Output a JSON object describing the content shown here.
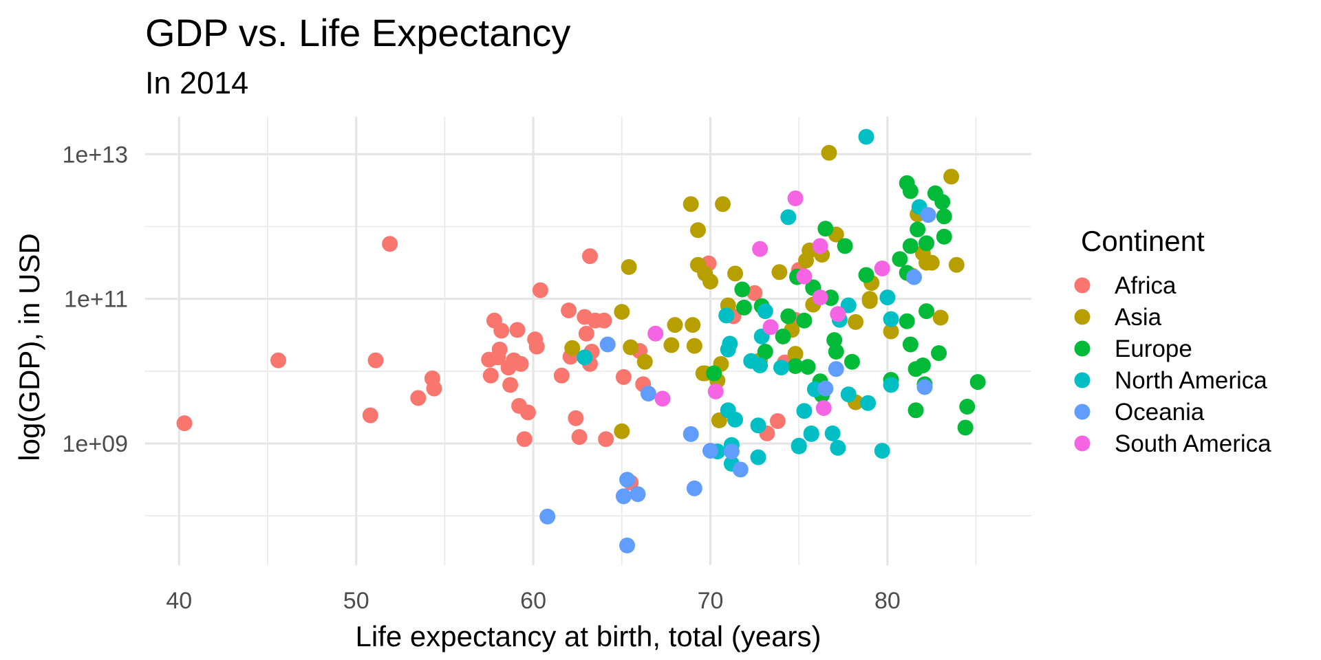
{
  "chart_data": {
    "type": "scatter",
    "title": "GDP vs. Life Expectancy",
    "subtitle": "In 2014",
    "xlabel": "Life expectancy at birth, total (years)",
    "ylabel": "log(GDP), in USD",
    "x_scale": "linear",
    "y_scale": "log10",
    "xlim": [
      38.5,
      86.5
    ],
    "ylim_log10": [
      7.3,
      13.45
    ],
    "x_ticks": [
      40,
      50,
      60,
      70,
      80
    ],
    "x_tick_labels": [
      "40",
      "50",
      "60",
      "70",
      "80"
    ],
    "x_minor_ticks": [
      45,
      55,
      65,
      75,
      85
    ],
    "y_ticks_log10": [
      9,
      11,
      13
    ],
    "y_tick_labels": [
      "1e+09",
      "1e+11",
      "1e+13"
    ],
    "y_minor_ticks_log10": [
      8,
      10,
      12
    ],
    "grid": true,
    "legend": {
      "title": "Continent",
      "position": "right",
      "entries": [
        "Africa",
        "Asia",
        "Europe",
        "North America",
        "Oceania",
        "South America"
      ]
    },
    "colors": {
      "Africa": "#F8766D",
      "Asia": "#B79F00",
      "Europe": "#00BA38",
      "North America": "#00BFC4",
      "Oceania": "#619CFF",
      "South America": "#F564E3"
    },
    "series": [
      {
        "name": "Africa",
        "points": [
          [
            40.3,
            9.28
          ],
          [
            45.6,
            10.15
          ],
          [
            51.9,
            11.76
          ],
          [
            51.1,
            10.15
          ],
          [
            50.8,
            9.39
          ],
          [
            53.5,
            9.63
          ],
          [
            54.3,
            9.9
          ],
          [
            54.4,
            9.76
          ],
          [
            60.4,
            11.12
          ],
          [
            57.8,
            10.7
          ],
          [
            58.2,
            10.56
          ],
          [
            59.1,
            10.57
          ],
          [
            60.1,
            10.44
          ],
          [
            60.2,
            10.34
          ],
          [
            58.1,
            10.3
          ],
          [
            57.5,
            10.16
          ],
          [
            58.0,
            10.19
          ],
          [
            58.9,
            10.15
          ],
          [
            59.3,
            10.1
          ],
          [
            58.6,
            10.05
          ],
          [
            57.6,
            9.94
          ],
          [
            58.7,
            9.81
          ],
          [
            59.2,
            9.52
          ],
          [
            59.7,
            9.43
          ],
          [
            59.5,
            9.06
          ],
          [
            62.0,
            10.84
          ],
          [
            62.9,
            10.75
          ],
          [
            63.5,
            10.7
          ],
          [
            64.0,
            10.7
          ],
          [
            63.0,
            10.52
          ],
          [
            63.3,
            10.27
          ],
          [
            62.1,
            10.2
          ],
          [
            63.2,
            10.1
          ],
          [
            61.6,
            9.94
          ],
          [
            62.4,
            9.35
          ],
          [
            62.6,
            9.09
          ],
          [
            64.1,
            9.06
          ],
          [
            65.1,
            9.92
          ],
          [
            66.0,
            10.28
          ],
          [
            66.2,
            9.82
          ],
          [
            63.2,
            11.59
          ],
          [
            65.5,
            8.46
          ],
          [
            69.9,
            11.49
          ],
          [
            72.5,
            11.08
          ],
          [
            71.3,
            10.76
          ],
          [
            74.8,
            10.71
          ],
          [
            74.2,
            10.12
          ],
          [
            73.8,
            9.31
          ],
          [
            73.2,
            9.14
          ],
          [
            75.0,
            11.4
          ]
        ]
      },
      {
        "name": "Asia",
        "points": [
          [
            62.2,
            10.32
          ],
          [
            65.0,
            10.82
          ],
          [
            65.5,
            10.33
          ],
          [
            66.3,
            10.13
          ],
          [
            68.0,
            10.64
          ],
          [
            69.0,
            10.64
          ],
          [
            67.8,
            10.36
          ],
          [
            69.1,
            10.35
          ],
          [
            69.6,
            9.97
          ],
          [
            65.0,
            9.17
          ],
          [
            65.4,
            11.44
          ],
          [
            68.9,
            12.31
          ],
          [
            70.7,
            12.31
          ],
          [
            69.3,
            11.95
          ],
          [
            69.3,
            11.47
          ],
          [
            69.7,
            11.35
          ],
          [
            70.0,
            11.24
          ],
          [
            71.4,
            11.35
          ],
          [
            73.9,
            11.37
          ],
          [
            76.7,
            13.02
          ],
          [
            77.1,
            11.89
          ],
          [
            75.6,
            11.67
          ],
          [
            76.3,
            11.61
          ],
          [
            75.4,
            11.53
          ],
          [
            79.1,
            11.22
          ],
          [
            83.6,
            12.69
          ],
          [
            81.7,
            12.17
          ],
          [
            82.0,
            11.63
          ],
          [
            82.2,
            11.5
          ],
          [
            82.5,
            11.5
          ],
          [
            81.4,
            11.32
          ],
          [
            83.9,
            11.47
          ],
          [
            79.0,
            11.0
          ],
          [
            75.8,
            10.92
          ],
          [
            78.2,
            10.68
          ],
          [
            79.0,
            10.97
          ],
          [
            80.2,
            10.55
          ],
          [
            83.0,
            10.74
          ],
          [
            71.0,
            10.91
          ],
          [
            74.6,
            10.57
          ],
          [
            72.8,
            10.15
          ],
          [
            74.8,
            10.24
          ],
          [
            70.6,
            10.1
          ],
          [
            69.7,
            9.97
          ],
          [
            70.4,
            9.87
          ],
          [
            78.2,
            9.57
          ],
          [
            70.5,
            9.32
          ]
        ]
      },
      {
        "name": "Europe",
        "points": [
          [
            71.8,
            11.13
          ],
          [
            76.5,
            11.97
          ],
          [
            77.6,
            11.73
          ],
          [
            74.9,
            11.31
          ],
          [
            75.8,
            11.16
          ],
          [
            78.8,
            11.33
          ],
          [
            81.1,
            12.6
          ],
          [
            81.3,
            12.49
          ],
          [
            82.7,
            12.46
          ],
          [
            83.1,
            12.34
          ],
          [
            83.2,
            12.14
          ],
          [
            81.7,
            11.96
          ],
          [
            83.2,
            11.86
          ],
          [
            81.3,
            11.73
          ],
          [
            82.2,
            11.77
          ],
          [
            80.7,
            11.55
          ],
          [
            81.1,
            11.36
          ],
          [
            76.8,
            11.02
          ],
          [
            74.9,
            11.3
          ],
          [
            75.8,
            11.15
          ],
          [
            76.8,
            11.01
          ],
          [
            71.9,
            10.88
          ],
          [
            72.9,
            10.9
          ],
          [
            74.4,
            10.76
          ],
          [
            75.3,
            10.7
          ],
          [
            74.1,
            10.48
          ],
          [
            73.1,
            10.27
          ],
          [
            74.8,
            10.07
          ],
          [
            75.5,
            10.06
          ],
          [
            77.0,
            10.43
          ],
          [
            77.1,
            10.27
          ],
          [
            78.0,
            10.13
          ],
          [
            70.2,
            9.97
          ],
          [
            76.2,
            9.86
          ],
          [
            76.3,
            9.67
          ],
          [
            81.1,
            10.69
          ],
          [
            82.2,
            10.83
          ],
          [
            81.3,
            10.37
          ],
          [
            82.9,
            10.25
          ],
          [
            82.0,
            10.08
          ],
          [
            81.6,
            10.03
          ],
          [
            80.2,
            9.88
          ],
          [
            82.1,
            9.82
          ],
          [
            85.1,
            9.85
          ],
          [
            81.6,
            9.46
          ],
          [
            84.5,
            9.51
          ],
          [
            84.4,
            9.22
          ]
        ]
      },
      {
        "name": "North America",
        "points": [
          [
            62.9,
            10.19
          ],
          [
            78.8,
            13.24
          ],
          [
            74.4,
            12.13
          ],
          [
            81.8,
            12.27
          ],
          [
            80.0,
            11.02
          ],
          [
            77.8,
            10.91
          ],
          [
            77.3,
            10.71
          ],
          [
            80.2,
            10.72
          ],
          [
            70.9,
            10.77
          ],
          [
            73.1,
            10.83
          ],
          [
            72.9,
            10.48
          ],
          [
            71.1,
            10.38
          ],
          [
            71.0,
            10.3
          ],
          [
            72.3,
            10.14
          ],
          [
            72.8,
            10.08
          ],
          [
            74.0,
            10.05
          ],
          [
            75.9,
            9.75
          ],
          [
            77.8,
            9.68
          ],
          [
            78.9,
            9.56
          ],
          [
            80.2,
            9.81
          ],
          [
            71.0,
            9.46
          ],
          [
            71.4,
            9.33
          ],
          [
            72.7,
            9.25
          ],
          [
            75.3,
            9.45
          ],
          [
            75.7,
            9.14
          ],
          [
            76.9,
            9.14
          ],
          [
            71.2,
            8.98
          ],
          [
            75.0,
            8.97
          ],
          [
            77.2,
            8.94
          ],
          [
            79.7,
            8.9
          ],
          [
            70.4,
            8.89
          ],
          [
            71.2,
            8.72
          ],
          [
            72.7,
            8.81
          ],
          [
            75.0,
            8.96
          ],
          [
            75.7,
            9.13
          ]
        ]
      },
      {
        "name": "Oceania",
        "points": [
          [
            64.2,
            10.37
          ],
          [
            66.5,
            9.69
          ],
          [
            68.9,
            9.13
          ],
          [
            82.3,
            12.16
          ],
          [
            81.5,
            11.3
          ],
          [
            77.1,
            10.03
          ],
          [
            76.5,
            9.76
          ],
          [
            82.1,
            9.78
          ],
          [
            70.0,
            8.9
          ],
          [
            71.2,
            8.89
          ],
          [
            71.7,
            8.64
          ],
          [
            65.3,
            8.5
          ],
          [
            65.1,
            8.27
          ],
          [
            65.9,
            8.3
          ],
          [
            69.1,
            8.38
          ],
          [
            65.3,
            7.59
          ],
          [
            60.8,
            7.99
          ]
        ]
      },
      {
        "name": "South America",
        "points": [
          [
            66.9,
            10.52
          ],
          [
            67.3,
            9.62
          ],
          [
            72.8,
            11.69
          ],
          [
            74.8,
            12.39
          ],
          [
            76.2,
            11.73
          ],
          [
            75.3,
            11.31
          ],
          [
            79.7,
            11.42
          ],
          [
            76.2,
            11.02
          ],
          [
            77.2,
            10.79
          ],
          [
            73.4,
            10.61
          ],
          [
            70.3,
            9.72
          ],
          [
            76.4,
            9.49
          ]
        ]
      }
    ]
  }
}
